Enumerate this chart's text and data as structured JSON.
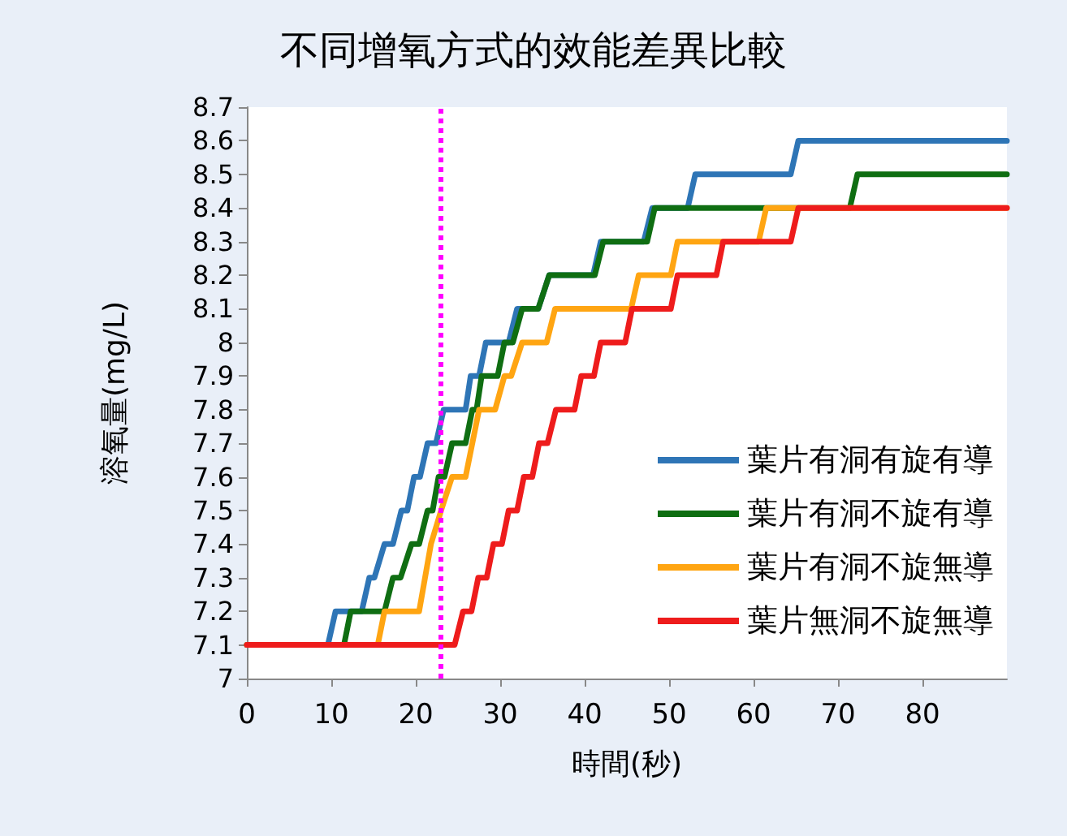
{
  "chart_data": {
    "type": "line",
    "title": "不同增氧方式的效能差異比較",
    "xlabel": "時間(秒)",
    "ylabel": "溶氧量(mg/L)",
    "xlim": [
      0,
      90
    ],
    "xticks": [
      0,
      10,
      20,
      30,
      40,
      50,
      60,
      70,
      80
    ],
    "ylim": [
      7,
      8.7
    ],
    "yticks": [
      7,
      7.1,
      7.2,
      7.3,
      7.4,
      7.5,
      7.6,
      7.7,
      7.8,
      7.9,
      8,
      8.1,
      8.2,
      8.3,
      8.4,
      8.5,
      8.6,
      8.7
    ],
    "grid": false,
    "legend": "bottom right",
    "marker": "none",
    "line_style": "solid",
    "ref_lines": [
      {
        "axis": "x",
        "value": 23,
        "label": null,
        "color": "#ff00ff",
        "line_style": "dotted"
      }
    ],
    "series": [
      {
        "name": "葉片有洞有旋有導",
        "color": "#2e75b6",
        "x": [
          0,
          9.6,
          10.5,
          13.6,
          14.5,
          15.1,
          16.3,
          17.3,
          18.3,
          19,
          19.8,
          20.5,
          21.4,
          22.4,
          23.3,
          25.9,
          26.5,
          27.5,
          28.3,
          31,
          32,
          34.5,
          35.8,
          41,
          41.9,
          47,
          48,
          52.2,
          53.1,
          64.4,
          65.3,
          90
        ],
        "values": [
          7.1,
          7.1,
          7.2,
          7.2,
          7.3,
          7.3,
          7.4,
          7.4,
          7.5,
          7.5,
          7.6,
          7.6,
          7.7,
          7.7,
          7.8,
          7.8,
          7.9,
          7.9,
          8,
          8,
          8.1,
          8.1,
          8.2,
          8.2,
          8.3,
          8.3,
          8.4,
          8.4,
          8.5,
          8.5,
          8.6,
          8.6
        ]
      },
      {
        "name": "葉片有洞不旋有導",
        "color": "#0f6e12",
        "x": [
          0,
          11.5,
          12.3,
          16.3,
          17.3,
          18.2,
          19.5,
          20.4,
          21.4,
          22,
          22.7,
          23.4,
          24.3,
          25.9,
          26.7,
          27.2,
          27.8,
          29.7,
          30.5,
          31.5,
          32.6,
          34.5,
          35.8,
          41.2,
          42.2,
          47.4,
          48.3,
          71.4,
          72.3,
          90
        ],
        "values": [
          7.1,
          7.1,
          7.2,
          7.2,
          7.3,
          7.3,
          7.4,
          7.4,
          7.5,
          7.5,
          7.6,
          7.6,
          7.7,
          7.7,
          7.8,
          7.8,
          7.9,
          7.9,
          8,
          8,
          8.1,
          8.1,
          8.2,
          8.2,
          8.3,
          8.3,
          8.4,
          8.4,
          8.5,
          8.5
        ]
      },
      {
        "name": "葉片有洞不旋無導",
        "color": "#ffa512",
        "x": [
          0,
          15.5,
          16.3,
          20.4,
          21.8,
          23,
          24.3,
          25.9,
          26.7,
          27.5,
          29.4,
          30.5,
          31.3,
          32.6,
          35.5,
          36.5,
          45.5,
          46.4,
          50.2,
          51,
          60.6,
          61.5,
          90
        ],
        "values": [
          7.1,
          7.1,
          7.2,
          7.2,
          7.4,
          7.5,
          7.6,
          7.6,
          7.7,
          7.8,
          7.8,
          7.9,
          7.9,
          8,
          8,
          8.1,
          8.1,
          8.2,
          8.2,
          8.3,
          8.3,
          8.4,
          8.4
        ]
      },
      {
        "name": "葉片無洞不旋無導",
        "color": "#ee1c1c",
        "x": [
          0,
          24.6,
          25.6,
          26.6,
          27.4,
          28.4,
          29.2,
          30.2,
          31,
          32,
          32.8,
          33.8,
          34.6,
          35.6,
          36.6,
          38.8,
          39.6,
          41.1,
          41.9,
          44.8,
          45.6,
          50.2,
          51,
          55.6,
          56.4,
          64.4,
          65.3,
          90
        ],
        "values": [
          7.1,
          7.1,
          7.2,
          7.2,
          7.3,
          7.3,
          7.4,
          7.4,
          7.5,
          7.5,
          7.6,
          7.6,
          7.7,
          7.7,
          7.8,
          7.8,
          7.9,
          7.9,
          8,
          8,
          8.1,
          8.1,
          8.2,
          8.2,
          8.3,
          8.3,
          8.4,
          8.4
        ]
      }
    ]
  }
}
